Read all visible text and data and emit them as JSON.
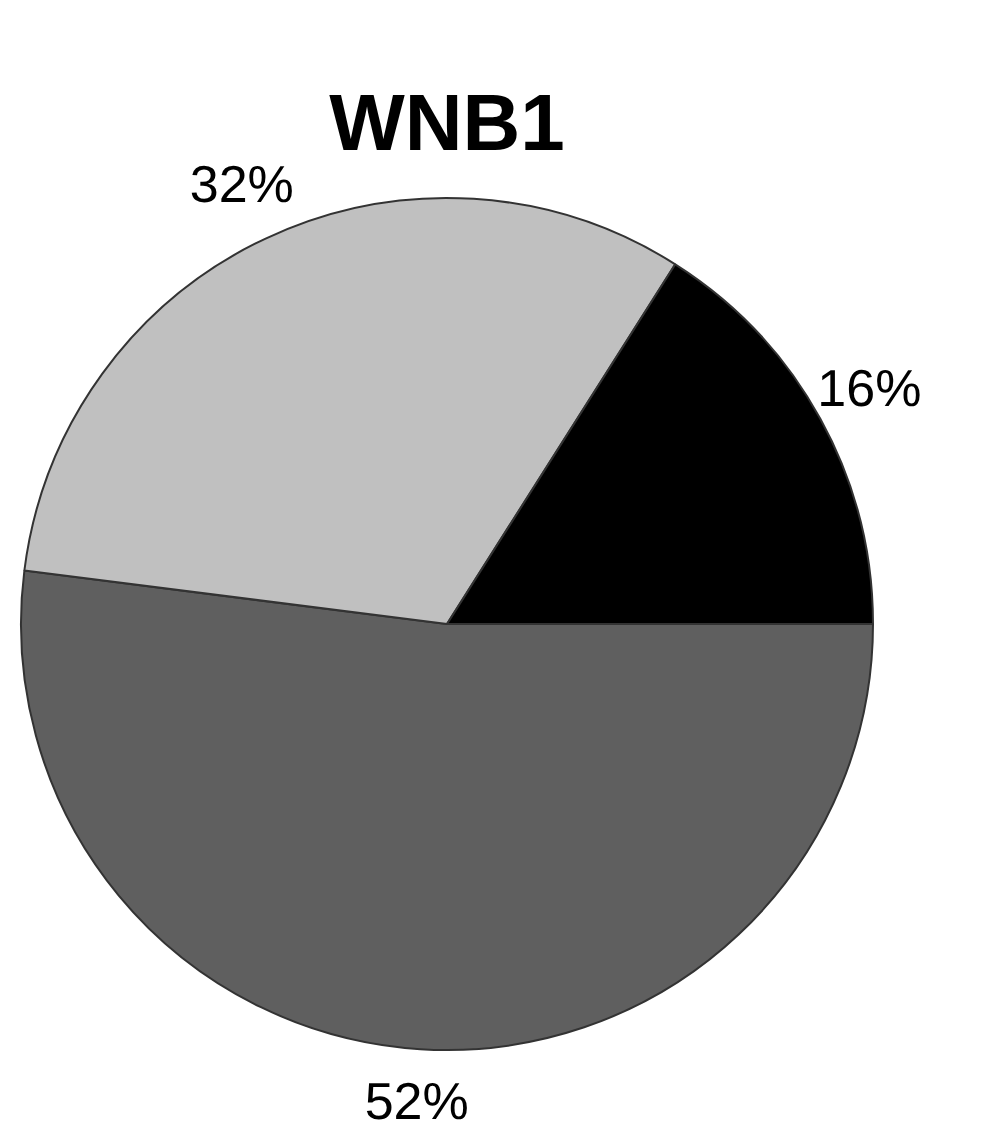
{
  "chart_data": {
    "type": "pie",
    "title": "WNB1",
    "categories": [
      null,
      null,
      null
    ],
    "values": [
      52,
      32,
      16
    ],
    "colors": [
      "#5f5f5f",
      "#c0c0c0",
      "#000000"
    ],
    "value_labels": [
      "52%",
      "32%",
      "16%"
    ],
    "legend": false
  }
}
